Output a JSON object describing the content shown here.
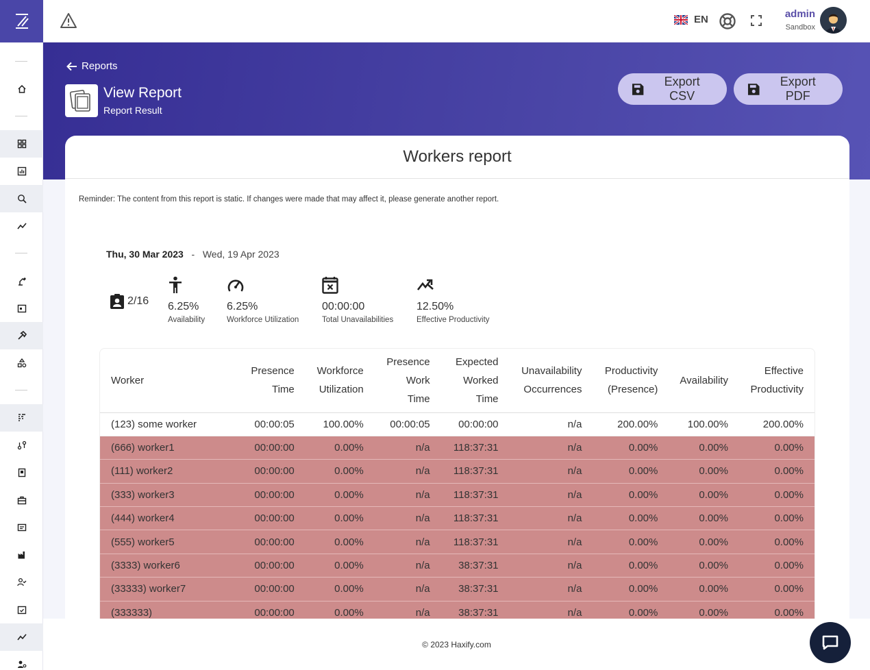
{
  "header": {
    "language": "EN",
    "user_name": "admin",
    "user_org": "Sandbox"
  },
  "banner": {
    "back_label": "Reports",
    "title": "View Report",
    "subtitle": "Report Result",
    "export_csv": "Export CSV",
    "export_pdf": "Export PDF"
  },
  "report": {
    "title": "Workers report",
    "reminder": "Reminder: The content from this report is static. If changes were made that may affect it, please generate another report.",
    "date_from": "Thu, 30 Mar 2023",
    "date_sep": "-",
    "date_to": "Wed, 19 Apr 2023",
    "worker_count": "2/16",
    "stats": [
      {
        "value": "6.25%",
        "label": "Availability",
        "icon": "person-icon"
      },
      {
        "value": "6.25%",
        "label": "Workforce Utilization",
        "icon": "speedometer-icon"
      },
      {
        "value": "00:00:00",
        "label": "Total Unavailabilities",
        "icon": "calendar-x-icon"
      },
      {
        "value": "12.50%",
        "label": "Effective Productivity",
        "icon": "trend-icon"
      }
    ]
  },
  "table": {
    "headers": [
      "Worker",
      "Presence Time",
      "Workforce Utilization",
      "Presence Work Time",
      "Expected Worked Time",
      "Unavailability Occurrences",
      "Productivity (Presence)",
      "Availability",
      "Effective Productivity"
    ],
    "rows": [
      [
        "(123) some worker",
        "00:00:05",
        "100.00%",
        "00:00:05",
        "00:00:00",
        "n/a",
        "200.00%",
        "100.00%",
        "200.00%"
      ],
      [
        "(666) worker1",
        "00:00:00",
        "0.00%",
        "n/a",
        "118:37:31",
        "n/a",
        "0.00%",
        "0.00%",
        "0.00%"
      ],
      [
        "(111) worker2",
        "00:00:00",
        "0.00%",
        "n/a",
        "118:37:31",
        "n/a",
        "0.00%",
        "0.00%",
        "0.00%"
      ],
      [
        "(333) worker3",
        "00:00:00",
        "0.00%",
        "n/a",
        "118:37:31",
        "n/a",
        "0.00%",
        "0.00%",
        "0.00%"
      ],
      [
        "(444) worker4",
        "00:00:00",
        "0.00%",
        "n/a",
        "118:37:31",
        "n/a",
        "0.00%",
        "0.00%",
        "0.00%"
      ],
      [
        "(555) worker5",
        "00:00:00",
        "0.00%",
        "n/a",
        "118:37:31",
        "n/a",
        "0.00%",
        "0.00%",
        "0.00%"
      ],
      [
        "(3333) worker6",
        "00:00:00",
        "0.00%",
        "n/a",
        "38:37:31",
        "n/a",
        "0.00%",
        "0.00%",
        "0.00%"
      ],
      [
        "(33333) worker7",
        "00:00:00",
        "0.00%",
        "n/a",
        "38:37:31",
        "n/a",
        "0.00%",
        "0.00%",
        "0.00%"
      ],
      [
        "(333333)",
        "00:00:00",
        "0.00%",
        "n/a",
        "38:37:31",
        "n/a",
        "0.00%",
        "0.00%",
        "0.00%"
      ]
    ]
  },
  "footer": {
    "copyright": "© 2023 Haxify.com"
  },
  "colors": {
    "brand": "#4a46a8",
    "row_alert": "#cd8b8b",
    "button": "#cbc6ef"
  }
}
